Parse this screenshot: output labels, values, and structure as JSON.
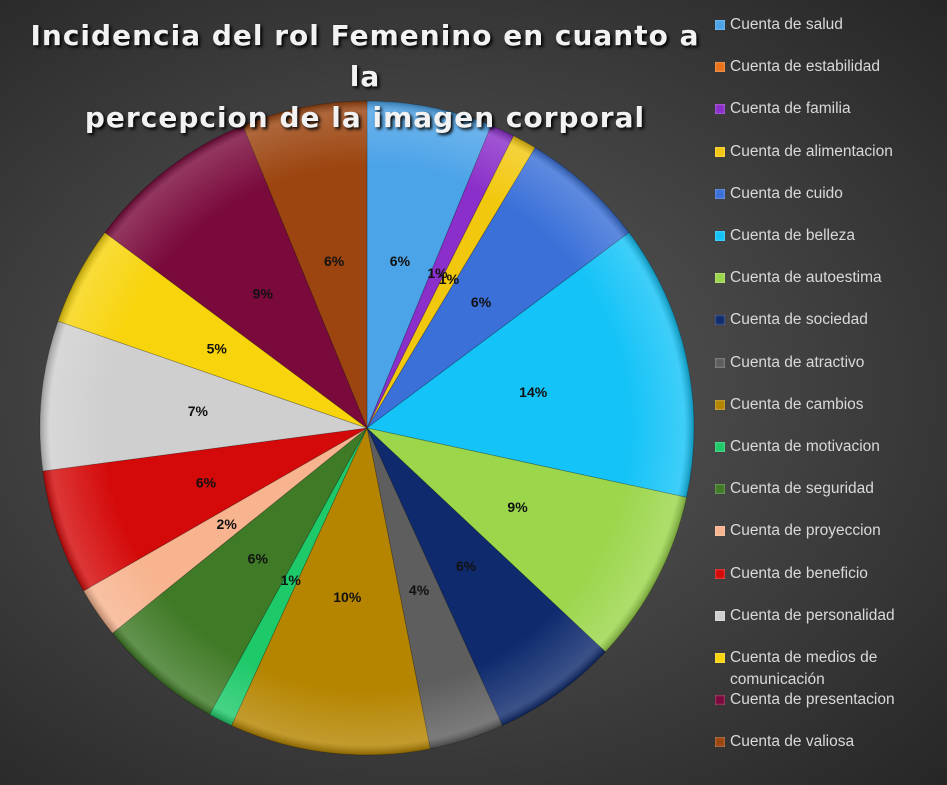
{
  "chart_data": {
    "type": "pie",
    "title": "Incidencia del rol Femenino en cuanto a la percepcion de la imagen corporal",
    "title_lines": [
      "Incidencia del rol Femenino en cuanto a la",
      "percepcion de la imagen corporal"
    ],
    "legend_position": "right",
    "slices": [
      {
        "name": "Cuenta de salud",
        "value": 6.2,
        "label": "6%",
        "color": "#4ba3e8"
      },
      {
        "name": "Cuenta de estabilidad",
        "value": 0,
        "label": "",
        "color": "#e8731c"
      },
      {
        "name": "Cuenta de familia",
        "value": 1.2,
        "label": "1%",
        "color": "#8a2fc9"
      },
      {
        "name": "Cuenta de alimentacion",
        "value": 1.2,
        "label": "1%",
        "color": "#f2c80f"
      },
      {
        "name": "Cuenta de cuido",
        "value": 6.2,
        "label": "6%",
        "color": "#3a70d8"
      },
      {
        "name": "Cuenta de belleza",
        "value": 13.6,
        "label": "14%",
        "color": "#14c3f7"
      },
      {
        "name": "Cuenta de autoestima",
        "value": 8.6,
        "label": "9%",
        "color": "#9bd64b"
      },
      {
        "name": "Cuenta de sociedad",
        "value": 6.2,
        "label": "6%",
        "color": "#0f2b6e"
      },
      {
        "name": "Cuenta de atractivo",
        "value": 3.7,
        "label": "4%",
        "color": "#5e5e5e"
      },
      {
        "name": "Cuenta de cambios",
        "value": 9.9,
        "label": "10%",
        "color": "#b58500"
      },
      {
        "name": "Cuenta de motivacion",
        "value": 1.2,
        "label": "1%",
        "color": "#1ec96a"
      },
      {
        "name": "Cuenta de seguridad",
        "value": 6.2,
        "label": "6%",
        "color": "#3f7a26"
      },
      {
        "name": "Cuenta de proyeccion",
        "value": 2.5,
        "label": "2%",
        "color": "#f7b48f"
      },
      {
        "name": "Cuenta de beneficio",
        "value": 6.2,
        "label": "6%",
        "color": "#d40a0a"
      },
      {
        "name": "Cuenta de personalidad",
        "value": 7.4,
        "label": "7%",
        "color": "#cfcfcf"
      },
      {
        "name": "Cuenta de medios de comunicación",
        "value": 4.9,
        "label": "5%",
        "color": "#f7d40c"
      },
      {
        "name": "Cuenta de presentacion",
        "value": 8.6,
        "label": "9%",
        "color": "#7a0a3c"
      },
      {
        "name": "Cuenta de valiosa",
        "value": 6.2,
        "label": "6%",
        "color": "#9c4510"
      }
    ]
  }
}
